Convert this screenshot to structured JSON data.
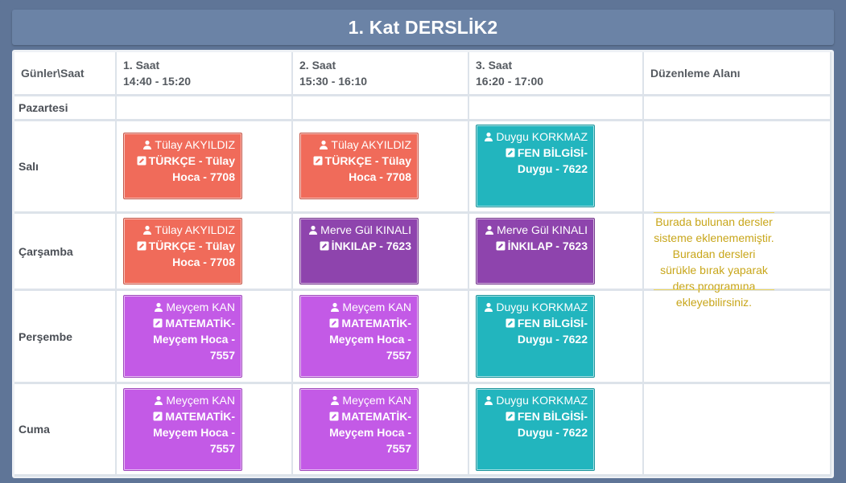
{
  "title": "1. Kat DERSLİK2",
  "columns": [
    {
      "label": "Günler\\Saat",
      "time": ""
    },
    {
      "label": "1. Saat",
      "time": "14:40 - 15:20"
    },
    {
      "label": "2. Saat",
      "time": "15:30 - 16:10"
    },
    {
      "label": "3. Saat",
      "time": "16:20 - 17:00"
    },
    {
      "label": "Düzenleme Alanı",
      "time": ""
    }
  ],
  "days": [
    "Pazartesi",
    "Salı",
    "Çarşamba",
    "Perşembe",
    "Cuma"
  ],
  "cards": {
    "sali_1": {
      "teacher": "Tülay AKYILDIZ",
      "lesson": "TÜRKÇE - Tülay Hoca - 7708",
      "color": "#f06b5a"
    },
    "sali_2": {
      "teacher": "Tülay AKYILDIZ",
      "lesson": "TÜRKÇE - Tülay Hoca - 7708",
      "color": "#f06b5a"
    },
    "sali_3": {
      "teacher": "Duygu KORKMAZ",
      "lesson": "FEN BİLGİSİ- Duygu - 7622",
      "color": "#22b5be"
    },
    "car_1": {
      "teacher": "Tülay AKYILDIZ",
      "lesson": "TÜRKÇE - Tülay Hoca - 7708",
      "color": "#f06b5a"
    },
    "car_2": {
      "teacher": "Merve Gül KINALI",
      "lesson": "İNKILAP - 7623",
      "color": "#8e44ad"
    },
    "car_3": {
      "teacher": "Merve Gül KINALI",
      "lesson": "İNKILAP - 7623",
      "color": "#8e44ad"
    },
    "per_1": {
      "teacher": "Meyçem KAN",
      "lesson": "MATEMATİK- Meyçem Hoca - 7557",
      "color": "#c35ae6"
    },
    "per_2": {
      "teacher": "Meyçem KAN",
      "lesson": "MATEMATİK- Meyçem Hoca - 7557",
      "color": "#c35ae6"
    },
    "per_3": {
      "teacher": "Duygu KORKMAZ",
      "lesson": "FEN BİLGİSİ- Duygu - 7622",
      "color": "#22b5be"
    },
    "cuma_1": {
      "teacher": "Meyçem KAN",
      "lesson": "MATEMATİK- Meyçem Hoca - 7557",
      "color": "#c35ae6"
    },
    "cuma_2": {
      "teacher": "Meyçem KAN",
      "lesson": "MATEMATİK- Meyçem Hoca - 7557",
      "color": "#c35ae6"
    },
    "cuma_3": {
      "teacher": "Duygu KORKMAZ",
      "lesson": "FEN BİLGİSİ- Duygu - 7622",
      "color": "#22b5be"
    }
  },
  "edit_area_note": "Burada bulunan dersler sisteme eklenememiştir. Buradan dersleri sürükle bırak yaparak ders programına ekleyebilirsiniz.",
  "icons": {
    "teacher": "user-icon",
    "lesson": "edit-icon"
  }
}
